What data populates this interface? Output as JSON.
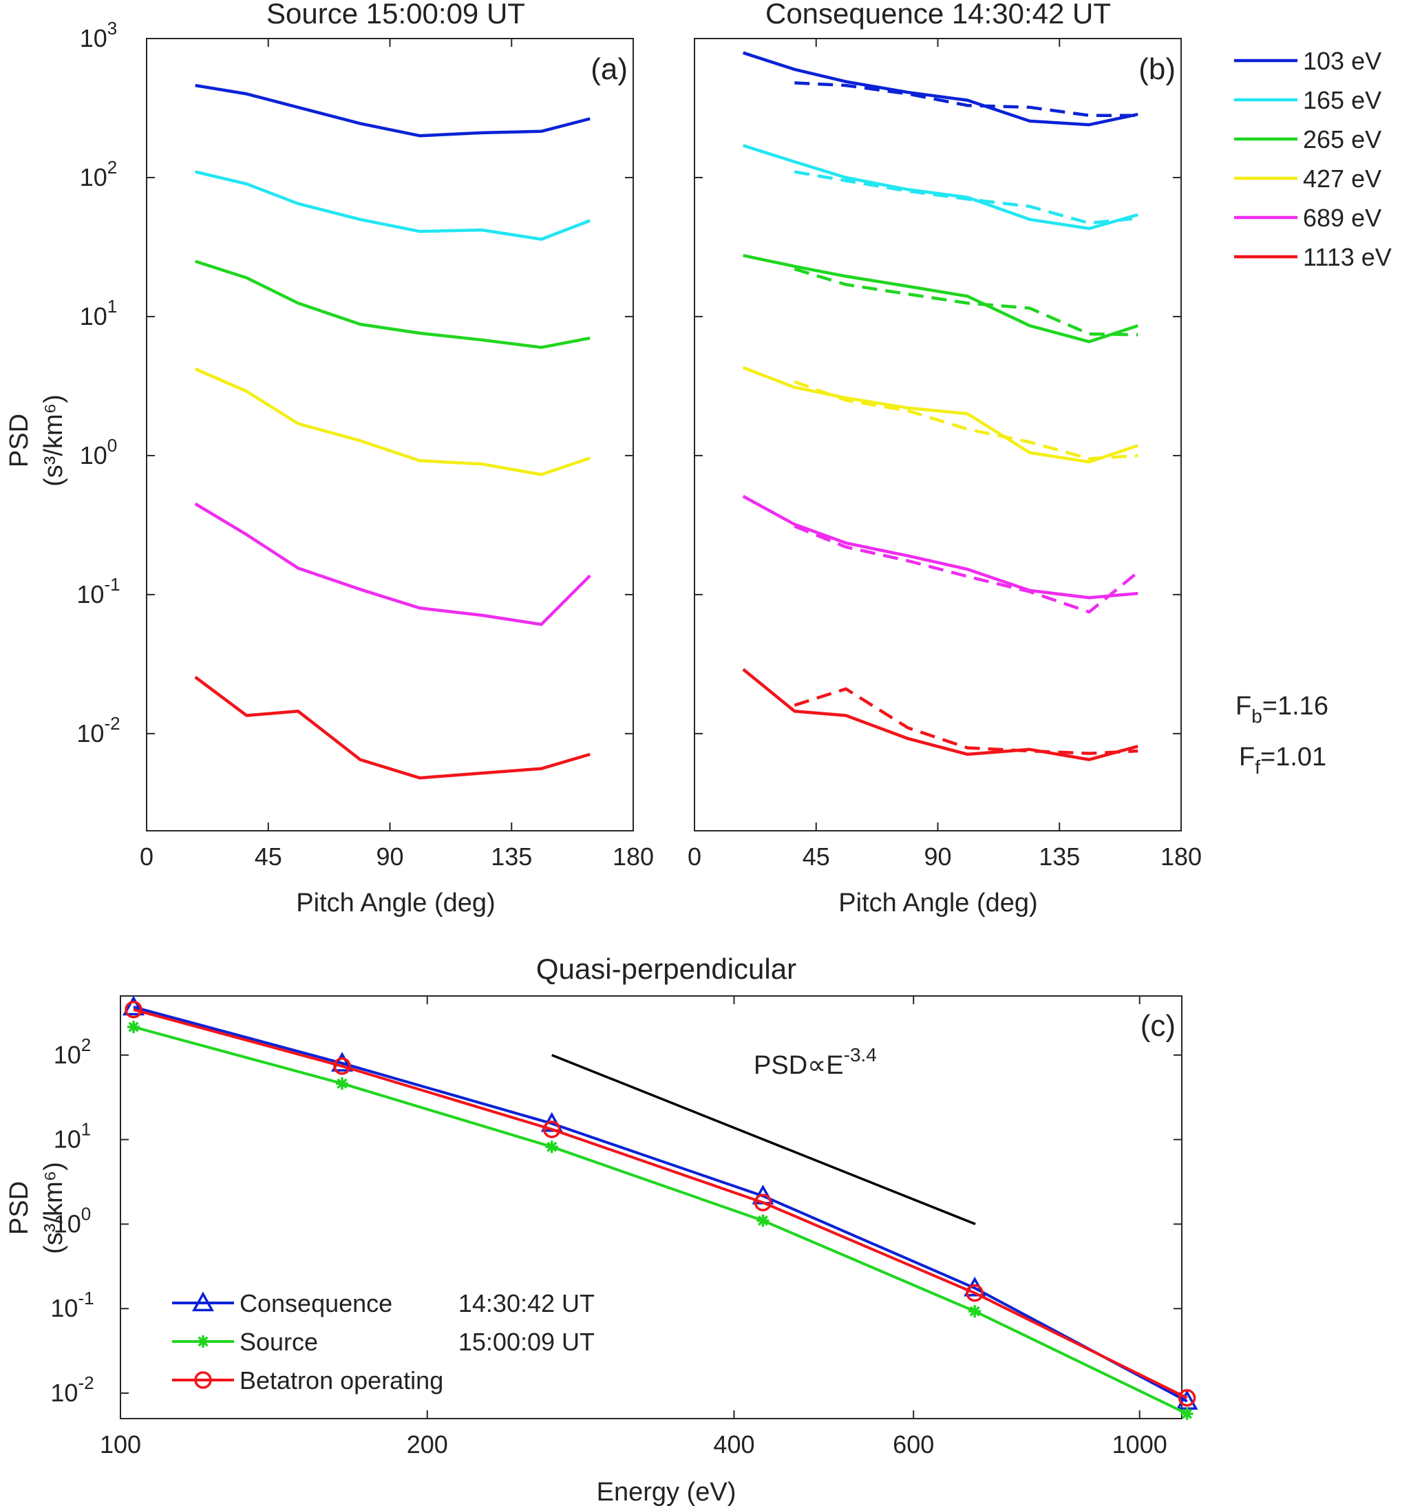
{
  "chart_data": [
    {
      "id": "a",
      "type": "line",
      "title": "Source 15:00:09 UT",
      "panel_label": "(a)",
      "xlabel": "Pitch Angle (deg)",
      "ylabel_line1": "PSD",
      "ylabel_line2": "(s³/km⁶)",
      "xlim": [
        0,
        180
      ],
      "ylim": [
        0.002,
        1000
      ],
      "yscale": "log",
      "x_ticks": [
        0,
        45,
        90,
        135,
        180
      ],
      "x_tick_labels": [
        "0",
        "45",
        "90",
        "135",
        "180"
      ],
      "y_ticks": [
        0.01,
        0.1,
        1,
        10,
        100,
        1000
      ],
      "y_tick_labels": [
        {
          "base": "10",
          "exp": "-2"
        },
        {
          "base": "10",
          "exp": "-1"
        },
        {
          "base": "10",
          "exp": "0"
        },
        {
          "base": "10",
          "exp": "1"
        },
        {
          "base": "10",
          "exp": "2"
        },
        {
          "base": "10",
          "exp": "3"
        }
      ],
      "x": [
        18,
        37,
        56,
        79,
        101,
        124,
        146,
        164
      ],
      "series": [
        {
          "name": "103 eV",
          "color": "#0a22d6",
          "values": [
            460,
            400,
            320,
            245,
            200,
            210,
            215,
            265
          ]
        },
        {
          "name": "165 eV",
          "color": "#22e6f2",
          "values": [
            110,
            90,
            65,
            50,
            41,
            42,
            36,
            49
          ]
        },
        {
          "name": "265 eV",
          "color": "#1fd61f",
          "values": [
            25,
            19,
            12.5,
            8.8,
            7.6,
            6.8,
            6.0,
            7.0
          ]
        },
        {
          "name": "427 eV",
          "color": "#f4ee16",
          "values": [
            4.2,
            2.9,
            1.7,
            1.28,
            0.92,
            0.87,
            0.73,
            0.96
          ]
        },
        {
          "name": "689 eV",
          "color": "#f02cf0",
          "values": [
            0.45,
            0.27,
            0.155,
            0.109,
            0.08,
            0.071,
            0.061,
            0.137
          ]
        },
        {
          "name": "1113 eV",
          "color": "#f2141a",
          "values": [
            0.0255,
            0.0135,
            0.0145,
            0.0065,
            0.0048,
            0.0052,
            0.0056,
            0.0071
          ]
        }
      ]
    },
    {
      "id": "b",
      "type": "line",
      "title": "Consequence 14:30:42 UT",
      "panel_label": "(b)",
      "xlabel": "Pitch Angle (deg)",
      "xlim": [
        0,
        180
      ],
      "ylim": [
        0.002,
        1000
      ],
      "yscale": "log",
      "x_ticks": [
        0,
        45,
        90,
        135,
        180
      ],
      "x_tick_labels": [
        "0",
        "45",
        "90",
        "135",
        "180"
      ],
      "x": [
        18,
        37,
        56,
        79,
        101,
        124,
        146,
        164
      ],
      "series": [
        {
          "name": "103 eV",
          "color": "#0a22d6",
          "values": [
            790,
            600,
            490,
            410,
            360,
            255,
            240,
            285
          ]
        },
        {
          "name": "165 eV",
          "color": "#22e6f2",
          "values": [
            170,
            130,
            100,
            82,
            72,
            50,
            43,
            54
          ]
        },
        {
          "name": "265 eV",
          "color": "#1fd61f",
          "values": [
            27.5,
            23,
            19.5,
            16.5,
            14,
            8.6,
            6.6,
            8.6
          ]
        },
        {
          "name": "427 eV",
          "color": "#f4ee16",
          "values": [
            4.3,
            3.1,
            2.6,
            2.2,
            2.0,
            1.05,
            0.9,
            1.18
          ]
        },
        {
          "name": "689 eV",
          "color": "#f02cf0",
          "values": [
            0.51,
            0.32,
            0.235,
            0.19,
            0.152,
            0.107,
            0.095,
            0.102
          ]
        },
        {
          "name": "1113 eV",
          "color": "#f2141a",
          "values": [
            0.029,
            0.0145,
            0.0135,
            0.0092,
            0.0071,
            0.0077,
            0.0065,
            0.0081
          ]
        }
      ],
      "dashed_x": [
        37,
        56,
        79,
        101,
        124,
        146,
        164
      ],
      "dashed_series": [
        {
          "color": "#0a22d6",
          "values": [
            480,
            460,
            400,
            330,
            320,
            280,
            280
          ]
        },
        {
          "color": "#22e6f2",
          "values": [
            110,
            95,
            80,
            70,
            62,
            47,
            51
          ]
        },
        {
          "color": "#1fd61f",
          "values": [
            22,
            17,
            14.5,
            12.5,
            11.5,
            7.5,
            7.4
          ]
        },
        {
          "color": "#f4ee16",
          "values": [
            3.4,
            2.5,
            2.1,
            1.55,
            1.25,
            0.95,
            1.0
          ]
        },
        {
          "color": "#f02cf0",
          "values": [
            0.31,
            0.22,
            0.175,
            0.135,
            0.105,
            0.075,
            0.145
          ]
        },
        {
          "color": "#f2141a",
          "values": [
            0.016,
            0.021,
            0.011,
            0.0079,
            0.0075,
            0.0072,
            0.0075
          ]
        }
      ],
      "annotation_fb": {
        "base": "F",
        "sub": "b",
        "value": "=1.16"
      },
      "annotation_ff": {
        "base": "F",
        "sub": "f",
        "value": "=1.01"
      }
    },
    {
      "id": "c",
      "type": "line",
      "title": "Quasi-perpendicular",
      "panel_label": "(c)",
      "xlabel": "Energy (eV)",
      "ylabel_line1": "PSD",
      "ylabel_line2": "(s³/km⁶)",
      "xscale": "log",
      "yscale": "log",
      "xlim": [
        100,
        1100
      ],
      "ylim": [
        0.005,
        500
      ],
      "x_ticks": [
        100,
        200,
        400,
        600,
        1000
      ],
      "x_tick_labels": [
        "100",
        "200",
        "400",
        "600",
        "1000"
      ],
      "y_ticks": [
        0.01,
        0.1,
        1,
        10,
        100
      ],
      "y_tick_labels": [
        {
          "base": "10",
          "exp": "-2"
        },
        {
          "base": "10",
          "exp": "-1"
        },
        {
          "base": "10",
          "exp": "0"
        },
        {
          "base": "10",
          "exp": "1"
        },
        {
          "base": "10",
          "exp": "2"
        }
      ],
      "x": [
        103,
        165,
        265,
        427,
        689,
        1113
      ],
      "series": [
        {
          "name": "Consequence 14:30:42 UT",
          "color": "#0a22d6",
          "marker": "triangle",
          "values": [
            370,
            80,
            15.5,
            2.15,
            0.175,
            0.008
          ]
        },
        {
          "name": "Source 15:00:09 UT",
          "color": "#1fd61f",
          "marker": "star",
          "values": [
            215,
            46,
            8.2,
            1.1,
            0.093,
            0.0057
          ]
        },
        {
          "name": "Betatron operating",
          "color": "#f2141a",
          "marker": "circle",
          "values": [
            345,
            74,
            13.2,
            1.8,
            0.153,
            0.0088
          ]
        }
      ],
      "legend": [
        {
          "name": "Consequence",
          "time": "14:30:42 UT"
        },
        {
          "name": "Source",
          "time": "15:00:09 UT"
        },
        {
          "name": "Betatron operating",
          "time": ""
        }
      ],
      "reference_line": {
        "x": [
          265,
          690
        ],
        "y": [
          100,
          1.0
        ],
        "color": "#000000"
      },
      "reference_label": {
        "text": "PSD∝E",
        "exp": "-3.4"
      }
    }
  ]
}
